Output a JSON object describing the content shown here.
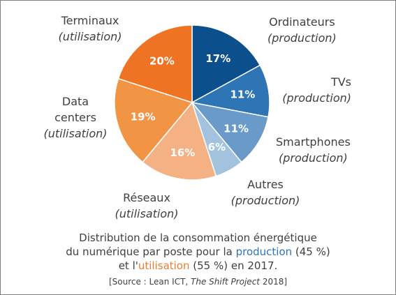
{
  "chart_data": {
    "type": "pie",
    "slices": [
      {
        "name": "Ordinateurs",
        "note": "(production)",
        "value": 17,
        "label": "17%",
        "color": "#0b4f8c"
      },
      {
        "name": "TVs",
        "note": "(production)",
        "value": 11,
        "label": "11%",
        "color": "#2e75b6"
      },
      {
        "name": "Smartphones",
        "note": "(production)",
        "value": 11,
        "label": "11%",
        "color": "#6a9bc8"
      },
      {
        "name": "Autres",
        "note": "(production)",
        "value": 6,
        "label": "6%",
        "color": "#a3c2de"
      },
      {
        "name": "Réseaux",
        "note": "(utilisation)",
        "value": 16,
        "label": "16%",
        "color": "#f4b183"
      },
      {
        "name": "Data centers",
        "note": "(utilisation)",
        "value": 19,
        "label": "19%",
        "color": "#f19545"
      },
      {
        "name": "Terminaux",
        "note": "(utilisation)",
        "value": 20,
        "label": "20%",
        "color": "#ee7424"
      }
    ],
    "start_angle": "12 o'clock",
    "direction": "clockwise"
  },
  "labels": {
    "ordinateurs": {
      "cat": "Ordinateurs",
      "sub": "(production)"
    },
    "tvs": {
      "cat": "TVs",
      "sub": "(production)"
    },
    "smartphones": {
      "cat": "Smartphones",
      "sub": "(production)"
    },
    "autres": {
      "cat": "Autres",
      "sub": "(production)"
    },
    "reseaux": {
      "cat": "Réseaux",
      "sub": "(utilisation)"
    },
    "datacenters": {
      "cat1": "Data",
      "cat2": "centers",
      "sub": "(utilisation)"
    },
    "terminaux": {
      "cat": "Terminaux",
      "sub": "(utilisation)"
    }
  },
  "caption": {
    "line1": "Distribution de la consommation énergétique",
    "line2_pre": "du numérique par poste pour la ",
    "line2_prod": "production",
    "line2_post": " (45 %)",
    "line3_pre": "et l'",
    "line3_util": "utilisation",
    "line3_post": " (55 %) en 2017."
  },
  "source": {
    "pre": "[Source : Lean ICT, ",
    "italic": "The Shift Project",
    "post": " 2018]"
  },
  "colors": {
    "production_text": "#2e75b6",
    "utilisation_text": "#ed7d31",
    "text": "#404040",
    "frame": "#7f7f7f"
  }
}
